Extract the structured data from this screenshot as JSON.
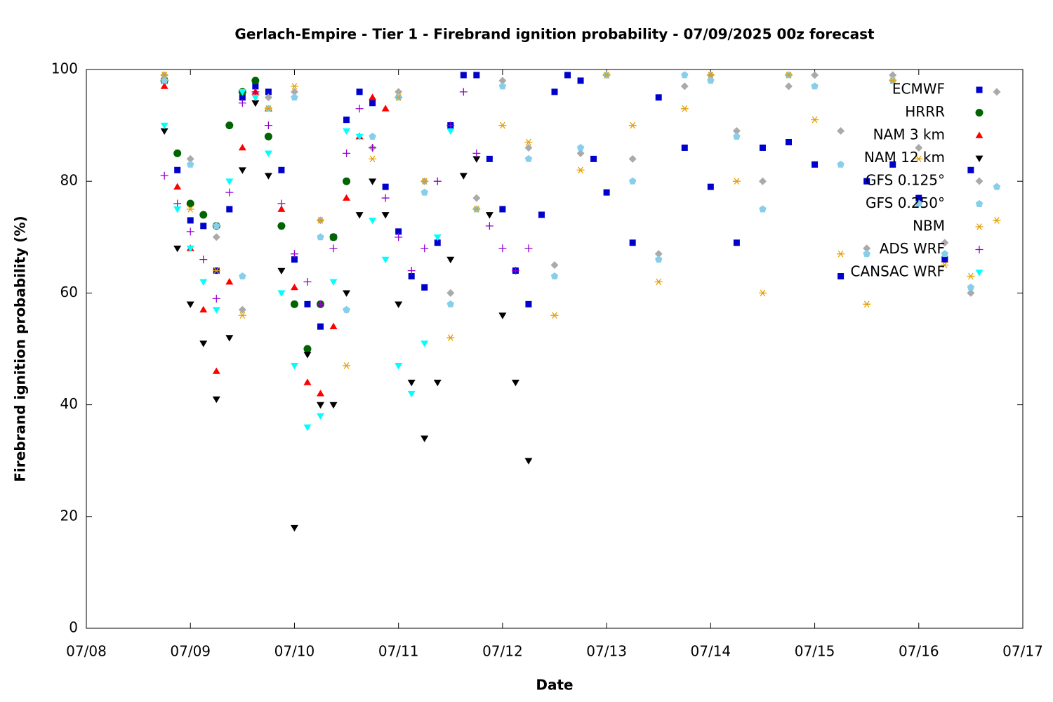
{
  "chart_data": {
    "type": "scatter",
    "title": "Gerlach-Empire - Tier 1 - Firebrand ignition probability - 07/09/2025 00z forecast",
    "x_label": "Date",
    "y_label": "Firebrand ignition probability (%)",
    "xlim": [
      0,
      9
    ],
    "xticks": [
      {
        "value": 0,
        "label": "07/08"
      },
      {
        "value": 1,
        "label": "07/09"
      },
      {
        "value": 2,
        "label": "07/10"
      },
      {
        "value": 3,
        "label": "07/11"
      },
      {
        "value": 4,
        "label": "07/12"
      },
      {
        "value": 5,
        "label": "07/13"
      },
      {
        "value": 6,
        "label": "07/14"
      },
      {
        "value": 7,
        "label": "07/15"
      },
      {
        "value": 8,
        "label": "07/16"
      },
      {
        "value": 9,
        "label": "07/17"
      }
    ],
    "ylim": [
      0,
      100
    ],
    "yticks": [
      0,
      20,
      40,
      60,
      80,
      100
    ],
    "legend": "top-right",
    "series": [
      {
        "name": "ECMWF",
        "color": "#0000cc",
        "marker": "square",
        "x": [
          0.75,
          0.875,
          1.0,
          1.125,
          1.25,
          1.375,
          1.5,
          1.625,
          1.75,
          1.875,
          2.0,
          2.125,
          2.25,
          2.375,
          2.5,
          2.625,
          2.75,
          2.875,
          3.0,
          3.125,
          3.25,
          3.375,
          3.5,
          3.625,
          3.75,
          3.875,
          4.0,
          4.125,
          4.25,
          4.375,
          4.5,
          4.625,
          4.75,
          4.875,
          5.0,
          5.25,
          5.5,
          5.75,
          6.0,
          6.25,
          6.5,
          6.75,
          7.0,
          7.25,
          7.5,
          7.75,
          8.0,
          8.25,
          8.5
        ],
        "values": [
          98,
          82,
          73,
          72,
          64,
          75,
          95,
          97,
          96,
          82,
          66,
          58,
          54,
          70,
          91,
          96,
          94,
          79,
          71,
          63,
          61,
          69,
          90,
          99,
          99,
          84,
          75,
          64,
          58,
          74,
          96,
          99,
          98,
          84,
          78,
          69,
          95,
          86,
          79,
          69,
          86,
          87,
          83,
          63,
          80,
          83,
          77,
          66,
          82
        ]
      },
      {
        "name": "HRRR",
        "color": "#006400",
        "marker": "circle",
        "x": [
          0.75,
          0.875,
          1.0,
          1.125,
          1.25,
          1.375,
          1.5,
          1.625,
          1.75,
          1.875,
          2.0,
          2.125,
          2.25,
          2.375,
          2.5
        ],
        "values": [
          98,
          85,
          76,
          74,
          72,
          90,
          96,
          98,
          88,
          72,
          58,
          50,
          58,
          70,
          80
        ]
      },
      {
        "name": "NAM 3 km",
        "color": "#ff0000",
        "marker": "triangle-up",
        "x": [
          0.75,
          0.875,
          1.0,
          1.125,
          1.25,
          1.375,
          1.5,
          1.625,
          1.75,
          1.875,
          2.0,
          2.125,
          2.25,
          2.375,
          2.5,
          2.625,
          2.75,
          2.875
        ],
        "values": [
          97,
          79,
          68,
          57,
          46,
          62,
          86,
          96,
          93,
          75,
          61,
          44,
          42,
          54,
          77,
          88,
          95,
          93
        ]
      },
      {
        "name": "NAM 12 km",
        "color": "#000000",
        "marker": "triangle-down",
        "x": [
          0.75,
          0.875,
          1.0,
          1.125,
          1.25,
          1.375,
          1.5,
          1.625,
          1.75,
          1.875,
          2.0,
          2.125,
          2.25,
          2.375,
          2.5,
          2.625,
          2.75,
          2.875,
          3.0,
          3.125,
          3.25,
          3.375,
          3.5,
          3.625,
          3.75,
          3.875,
          4.0,
          4.125,
          4.25
        ],
        "values": [
          89,
          68,
          58,
          51,
          41,
          52,
          82,
          94,
          81,
          64,
          18,
          49,
          40,
          40,
          60,
          74,
          80,
          74,
          58,
          44,
          34,
          44,
          66,
          81,
          84,
          74,
          56,
          44,
          30
        ]
      },
      {
        "name": "GFS 0.125°",
        "color": "#aaaaaa",
        "marker": "diamond",
        "x": [
          0.75,
          1.0,
          1.25,
          1.5,
          1.75,
          2.0,
          2.25,
          2.5,
          2.75,
          3.0,
          3.25,
          3.5,
          3.75,
          4.0,
          4.25,
          4.5,
          4.75,
          5.0,
          5.25,
          5.5,
          5.75,
          6.0,
          6.25,
          6.5,
          6.75,
          7.0,
          7.25,
          7.5,
          7.75,
          8.0,
          8.25,
          8.5,
          8.75
        ],
        "values": [
          99,
          84,
          70,
          57,
          95,
          96,
          73,
          57,
          86,
          96,
          80,
          60,
          77,
          98,
          86,
          65,
          85,
          99,
          84,
          67,
          97,
          99,
          89,
          80,
          97,
          99,
          89,
          68,
          99,
          86,
          69,
          60,
          96
        ]
      },
      {
        "name": "GFS 0.250°",
        "color": "#87ceeb",
        "marker": "pentagon",
        "x": [
          0.75,
          1.0,
          1.25,
          1.5,
          1.75,
          2.0,
          2.25,
          2.5,
          2.75,
          3.0,
          3.25,
          3.5,
          3.75,
          4.0,
          4.25,
          4.5,
          4.75,
          5.0,
          5.25,
          5.5,
          5.75,
          6.0,
          6.25,
          6.5,
          6.75,
          7.0,
          7.25,
          7.5,
          7.75,
          8.0,
          8.25,
          8.5,
          8.75
        ],
        "values": [
          98,
          83,
          72,
          63,
          93,
          95,
          70,
          57,
          88,
          95,
          78,
          58,
          75,
          97,
          84,
          63,
          86,
          99,
          80,
          66,
          99,
          98,
          88,
          75,
          99,
          97,
          83,
          67,
          98,
          76,
          67,
          61,
          79
        ]
      },
      {
        "name": "NBM",
        "color": "#e69f00",
        "marker": "asterisk",
        "x": [
          0.75,
          1.0,
          1.25,
          1.5,
          1.75,
          2.0,
          2.25,
          2.5,
          2.75,
          3.0,
          3.25,
          3.5,
          3.75,
          4.0,
          4.25,
          4.5,
          4.75,
          5.0,
          5.25,
          5.5,
          5.75,
          6.0,
          6.25,
          6.5,
          6.75,
          7.0,
          7.25,
          7.5,
          7.75,
          8.0,
          8.25,
          8.5,
          8.75
        ],
        "values": [
          99,
          75,
          64,
          56,
          93,
          97,
          73,
          47,
          84,
          95,
          80,
          52,
          75,
          90,
          87,
          56,
          82,
          99,
          90,
          62,
          93,
          99,
          80,
          60,
          99,
          91,
          67,
          58,
          98,
          84,
          65,
          63,
          73
        ]
      },
      {
        "name": "ADS WRF",
        "color": "#9400d3",
        "marker": "plus",
        "x": [
          0.75,
          0.875,
          1.0,
          1.125,
          1.25,
          1.375,
          1.5,
          1.625,
          1.75,
          1.875,
          2.0,
          2.125,
          2.25,
          2.375,
          2.5,
          2.625,
          2.75,
          2.875,
          3.0,
          3.125,
          3.25,
          3.375,
          3.5,
          3.625,
          3.75,
          3.875,
          4.0,
          4.125,
          4.25
        ],
        "values": [
          81,
          76,
          71,
          66,
          59,
          78,
          94,
          96,
          90,
          76,
          67,
          62,
          58,
          68,
          85,
          93,
          86,
          77,
          70,
          64,
          68,
          80,
          90,
          96,
          85,
          72,
          68,
          64,
          68
        ]
      },
      {
        "name": "CANSAC WRF",
        "color": "#00ffff",
        "marker": "triangle-down",
        "x": [
          0.75,
          0.875,
          1.0,
          1.125,
          1.25,
          1.375,
          1.5,
          1.625,
          1.75,
          1.875,
          2.0,
          2.125,
          2.25,
          2.375,
          2.5,
          2.625,
          2.75,
          2.875,
          3.0,
          3.125,
          3.25,
          3.375,
          3.5
        ],
        "values": [
          90,
          75,
          68,
          62,
          57,
          80,
          96,
          95,
          85,
          60,
          47,
          36,
          38,
          62,
          89,
          88,
          73,
          66,
          47,
          42,
          51,
          70,
          89
        ]
      }
    ]
  }
}
